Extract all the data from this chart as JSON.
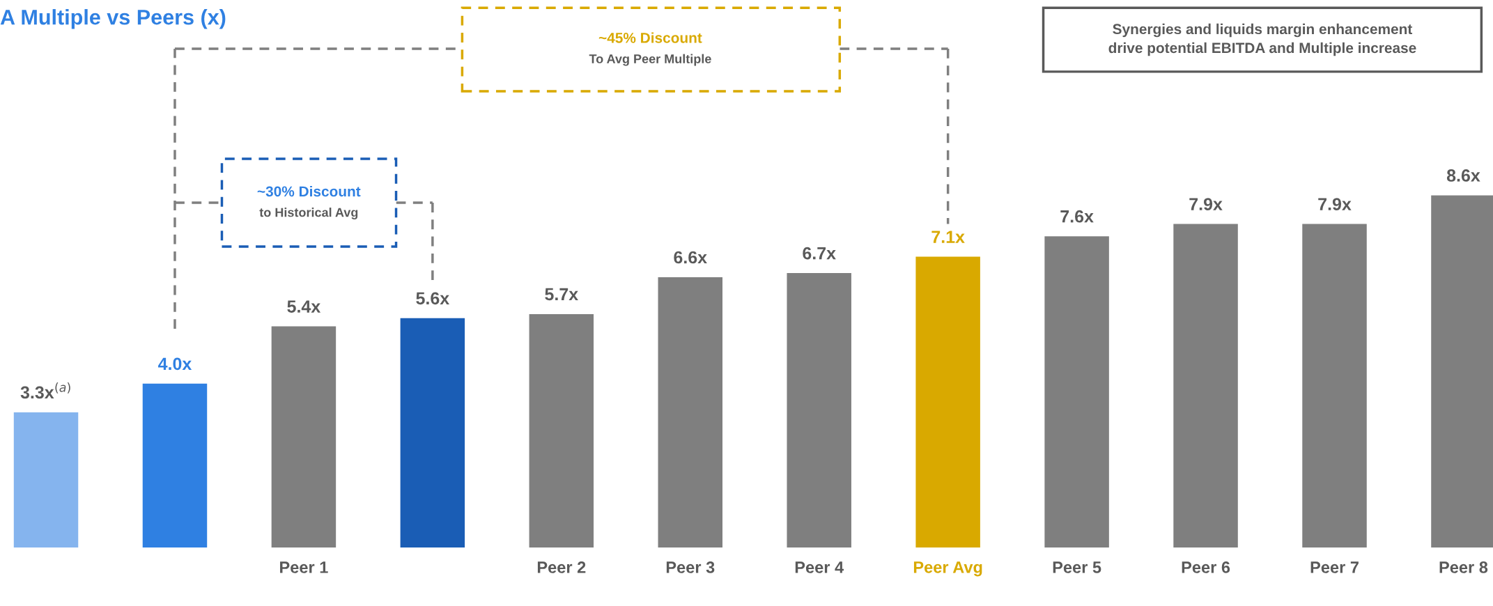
{
  "chart_data": {
    "type": "bar",
    "title": "A Multiple vs Peers (x)",
    "categories": [
      null,
      null,
      "Peer 1",
      null,
      "Peer 2",
      "Peer 3",
      "Peer 4",
      "Peer Avg",
      "Peer 5",
      "Peer 6",
      "Peer 7",
      "Peer 8"
    ],
    "values": [
      3.3,
      4.0,
      5.4,
      5.6,
      5.7,
      6.6,
      6.7,
      7.1,
      7.6,
      7.9,
      7.9,
      8.6
    ],
    "colors": [
      "#85b4ee",
      "#2f80e2",
      "#7f7f7f",
      "#1a5db5",
      "#7f7f7f",
      "#7f7f7f",
      "#7f7f7f",
      "#d9a900",
      "#7f7f7f",
      "#7f7f7f",
      "#7f7f7f",
      "#7f7f7f"
    ],
    "value_labels": [
      "3.3x$^{(a)}$",
      "4.0x",
      "5.4x",
      "5.6x",
      "5.7x",
      "6.6x",
      "6.7x",
      "7.1x",
      "7.6x",
      "7.9x",
      "7.9x",
      "8.6x"
    ],
    "annotations": [
      "~30% Discount",
      "to Historical Avg",
      "~45% Discount",
      "To Avg Peer Multiple",
      "Synergies and liquids margin enhancement\ndrive potential EBITDA and Multiple increase"
    ],
    "legend": false
  }
}
